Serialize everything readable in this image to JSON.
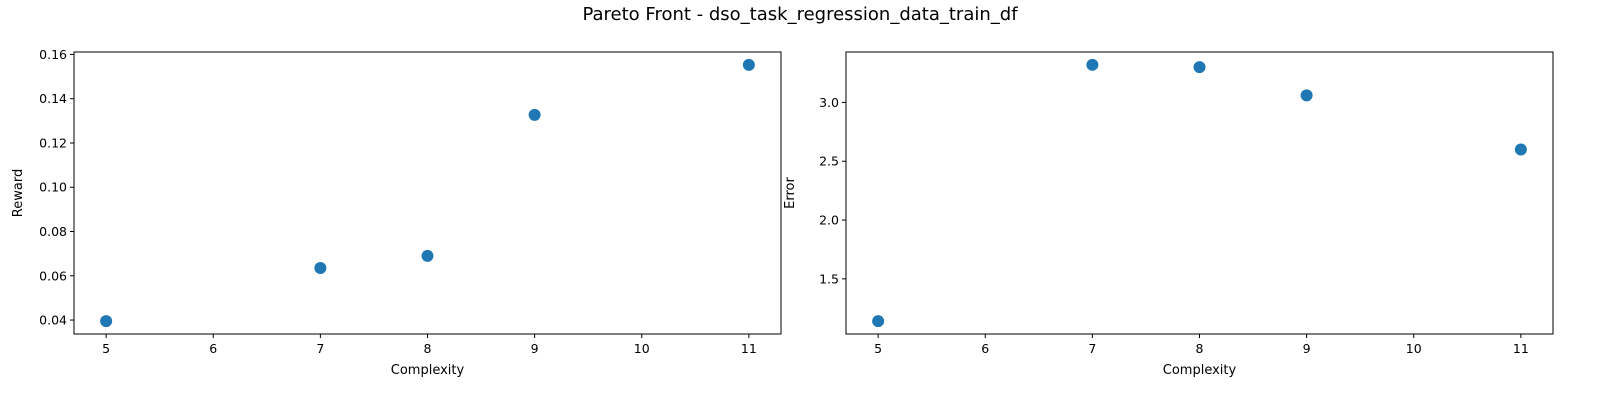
{
  "figure": {
    "title": "Pareto Front - dso_task_regression_data_train_df"
  },
  "chart_data": [
    {
      "type": "scatter",
      "xlabel": "Complexity",
      "ylabel": "Reward",
      "x": [
        5,
        7,
        8,
        9,
        11
      ],
      "y": [
        0.0395,
        0.0635,
        0.069,
        0.1327,
        0.1553
      ],
      "xlim": [
        4.7,
        11.3
      ],
      "ylim": [
        0.0337,
        0.1611
      ],
      "xticks": [
        5,
        6,
        7,
        8,
        9,
        10,
        11
      ],
      "yticks": [
        0.04,
        0.06,
        0.08,
        0.1,
        0.12,
        0.14,
        0.16
      ],
      "ytick_labels": [
        "0.04",
        "0.06",
        "0.08",
        "0.10",
        "0.12",
        "0.14",
        "0.16"
      ],
      "grid": false,
      "color": "#1f77b4"
    },
    {
      "type": "scatter",
      "xlabel": "Complexity",
      "ylabel": "Error",
      "x": [
        5,
        7,
        8,
        9,
        11
      ],
      "y": [
        1.14,
        3.32,
        3.3,
        3.06,
        2.6
      ],
      "xlim": [
        4.7,
        11.3
      ],
      "ylim": [
        1.031,
        3.429
      ],
      "xticks": [
        5,
        6,
        7,
        8,
        9,
        10,
        11
      ],
      "yticks": [
        1.5,
        2.0,
        2.5,
        3.0
      ],
      "ytick_labels": [
        "1.5",
        "2.0",
        "2.5",
        "3.0"
      ],
      "grid": false,
      "color": "#1f77b4"
    }
  ]
}
